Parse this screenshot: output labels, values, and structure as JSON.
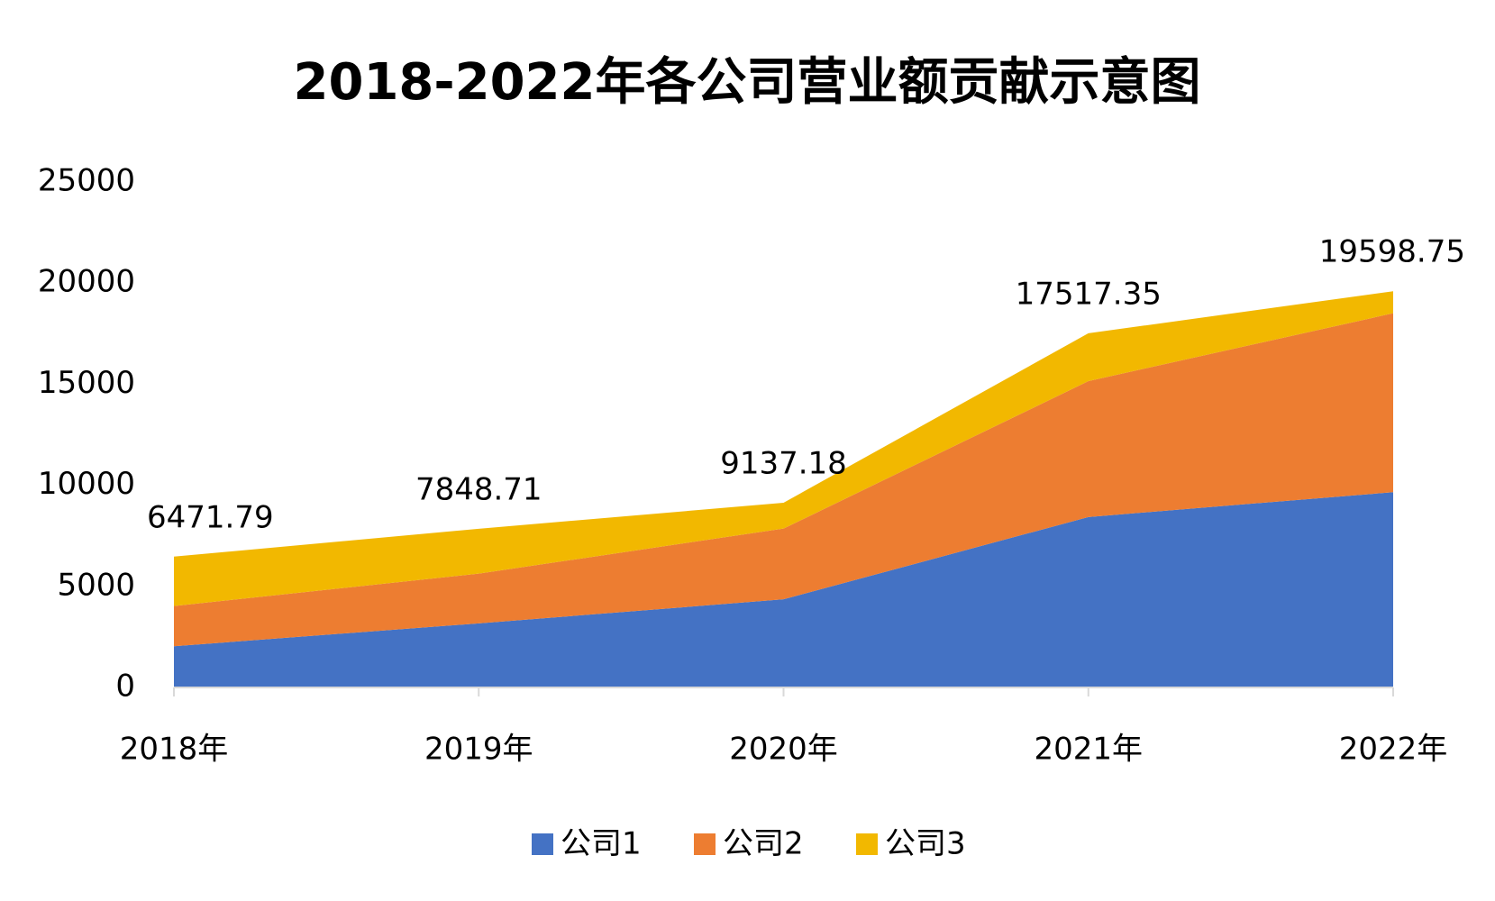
{
  "chart_data": {
    "type": "stacked_area",
    "title": "2018-2022年各公司营业额贡献示意图",
    "categories": [
      "2018年",
      "2019年",
      "2020年",
      "2021年",
      "2022年"
    ],
    "series": [
      {
        "name": "公司1",
        "color": "#4472c4",
        "values": [
          2040,
          3170,
          4360,
          8430,
          9660
        ]
      },
      {
        "name": "公司2",
        "color": "#ed7d31",
        "values": [
          1990,
          2460,
          3500,
          6720,
          8850
        ]
      },
      {
        "name": "公司3",
        "color": "#f2b800",
        "values": [
          2441.79,
          2218.71,
          1277.18,
          2367.35,
          1088.75
        ]
      }
    ],
    "totals": {
      "values": [
        6471.79,
        7848.71,
        9137.18,
        17517.35,
        19598.75
      ]
    },
    "ylim": [
      0,
      25000
    ],
    "yticks": [
      0,
      5000,
      10000,
      15000,
      20000,
      25000
    ],
    "grid": false,
    "legend": "bottom"
  }
}
